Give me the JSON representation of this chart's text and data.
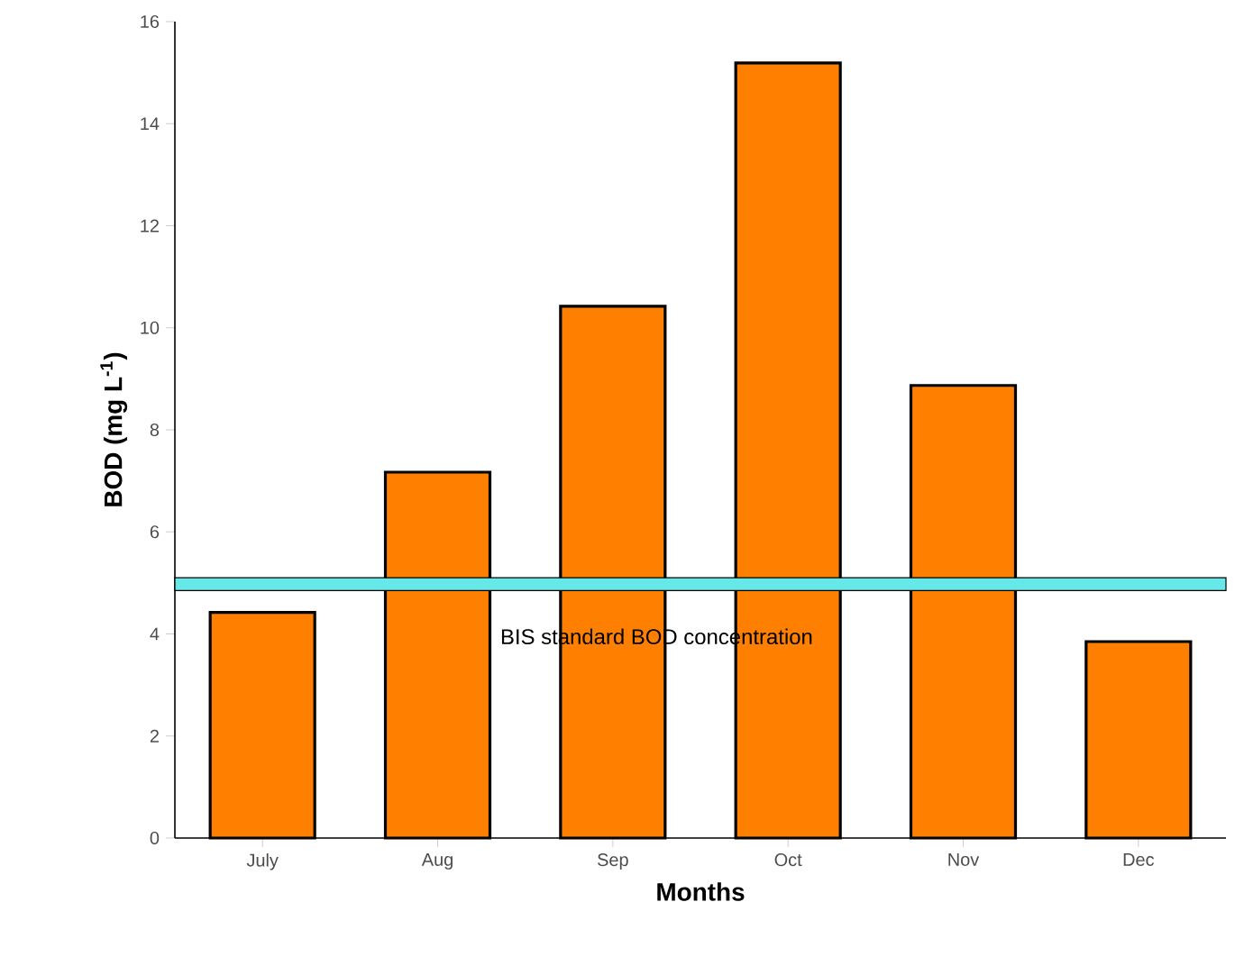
{
  "chart_data": {
    "type": "bar",
    "xlabel": "Months",
    "ylabel": "BOD (mg L$^{-1}$)",
    "categories": [
      "July",
      "Aug",
      "Sep",
      "Oct",
      "Nov",
      "Dec"
    ],
    "values": [
      4.42,
      7.17,
      10.42,
      15.19,
      8.87,
      3.85
    ],
    "color": "#ff8000",
    "ylim": [
      0,
      16
    ],
    "yticks": [
      0,
      2,
      4,
      6,
      8,
      10,
      12,
      14,
      16
    ],
    "bands": [
      {
        "axis": "y",
        "from": 4.85,
        "to": 5.1,
        "label": "BIS standard BOD concentration",
        "color": "#66e8e8"
      }
    ]
  }
}
